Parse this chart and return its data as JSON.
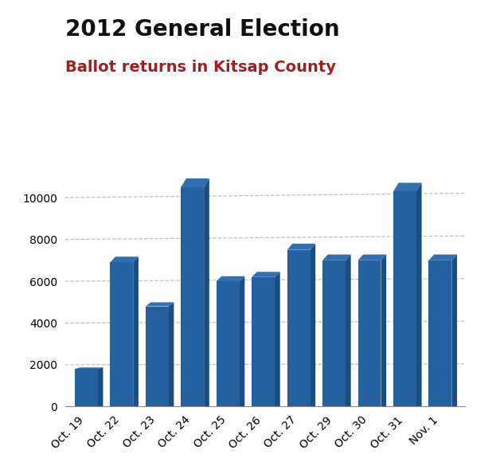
{
  "title": "2012 General Election",
  "subtitle": "Ballot returns in Kitsap County",
  "title_color": "#111111",
  "subtitle_color": "#992222",
  "categories": [
    "Oct. 19",
    "Oct. 22",
    "Oct. 23",
    "Oct. 24",
    "Oct. 25",
    "Oct. 26",
    "Oct. 27",
    "Oct. 29",
    "Oct. 30",
    "Oct. 31",
    "Nov. 1"
  ],
  "values": [
    1800,
    6900,
    4800,
    10500,
    6000,
    6200,
    7500,
    7000,
    7000,
    10300,
    7000
  ],
  "bar_color_front": "#2561a0",
  "bar_color_side": "#1a4d80",
  "bar_color_top": "#3070b0",
  "ylim": [
    0,
    11500
  ],
  "yticks": [
    0,
    2000,
    4000,
    6000,
    8000,
    10000
  ],
  "background_color": "#ffffff",
  "grid_color": "#bbbbbb",
  "title_fontsize": 20,
  "subtitle_fontsize": 14,
  "tick_fontsize": 10,
  "bar_width": 0.65
}
